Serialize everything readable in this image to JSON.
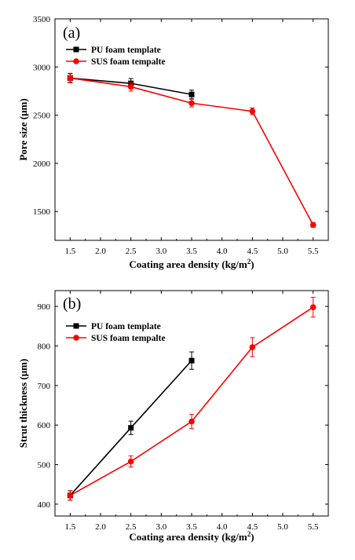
{
  "chart_data": [
    {
      "type": "line",
      "panel_label": "(a)",
      "xlabel_main": "Coating area density (kg/m",
      "xlabel_sup": "2",
      "xlabel_end": ")",
      "ylabel": "Pore size (μm)",
      "xlim": [
        1.25,
        5.75
      ],
      "ylim": [
        1200,
        3500
      ],
      "xticks": [
        "1.5",
        "2.0",
        "2.5",
        "3.0",
        "3.5",
        "4.0",
        "4.5",
        "5.0",
        "5.5"
      ],
      "xtick_values": [
        1.5,
        2.0,
        2.5,
        3.0,
        3.5,
        4.0,
        4.5,
        5.0,
        5.5
      ],
      "yticks": [
        "1500",
        "2000",
        "2500",
        "3000",
        "3500"
      ],
      "ytick_values": [
        1500,
        2000,
        2500,
        3000,
        3500
      ],
      "legend_position": "top-left",
      "series": [
        {
          "name": "PU foam template",
          "color": "#000000",
          "marker": "square",
          "x": [
            1.5,
            2.5,
            3.5
          ],
          "y": [
            2885,
            2830,
            2715
          ],
          "err": [
            45,
            50,
            45
          ]
        },
        {
          "name": "SUS foam tempalte",
          "color": "#ff0000",
          "marker": "circle",
          "x": [
            1.5,
            2.5,
            3.5,
            4.5,
            5.5
          ],
          "y": [
            2885,
            2795,
            2625,
            2540,
            1360
          ],
          "err": [
            50,
            45,
            40,
            35,
            25
          ]
        }
      ]
    },
    {
      "type": "line",
      "panel_label": "(b)",
      "xlabel_main": "Coating area density (kg/m",
      "xlabel_sup": "2",
      "xlabel_end": ")",
      "ylabel": "Strut thickness (μm)",
      "xlim": [
        1.25,
        5.75
      ],
      "ylim": [
        370,
        940
      ],
      "xticks": [
        "1.5",
        "2.0",
        "2.5",
        "3.0",
        "3.5",
        "4.0",
        "4.5",
        "5.0",
        "5.5"
      ],
      "xtick_values": [
        1.5,
        2.0,
        2.5,
        3.0,
        3.5,
        4.0,
        4.5,
        5.0,
        5.5
      ],
      "yticks": [
        "400",
        "500",
        "600",
        "700",
        "800",
        "900"
      ],
      "ytick_values": [
        400,
        500,
        600,
        700,
        800,
        900
      ],
      "legend_position": "top-left",
      "series": [
        {
          "name": "PU foam template",
          "color": "#000000",
          "marker": "square",
          "x": [
            1.5,
            2.5,
            3.5
          ],
          "y": [
            422,
            593,
            763
          ],
          "err": [
            12,
            17,
            22
          ]
        },
        {
          "name": "SUS foam tempalte",
          "color": "#ff0000",
          "marker": "circle",
          "x": [
            1.5,
            2.5,
            3.5,
            4.5,
            5.5
          ],
          "y": [
            422,
            508,
            609,
            797,
            898
          ],
          "err": [
            12,
            14,
            18,
            24,
            25
          ]
        }
      ]
    }
  ]
}
